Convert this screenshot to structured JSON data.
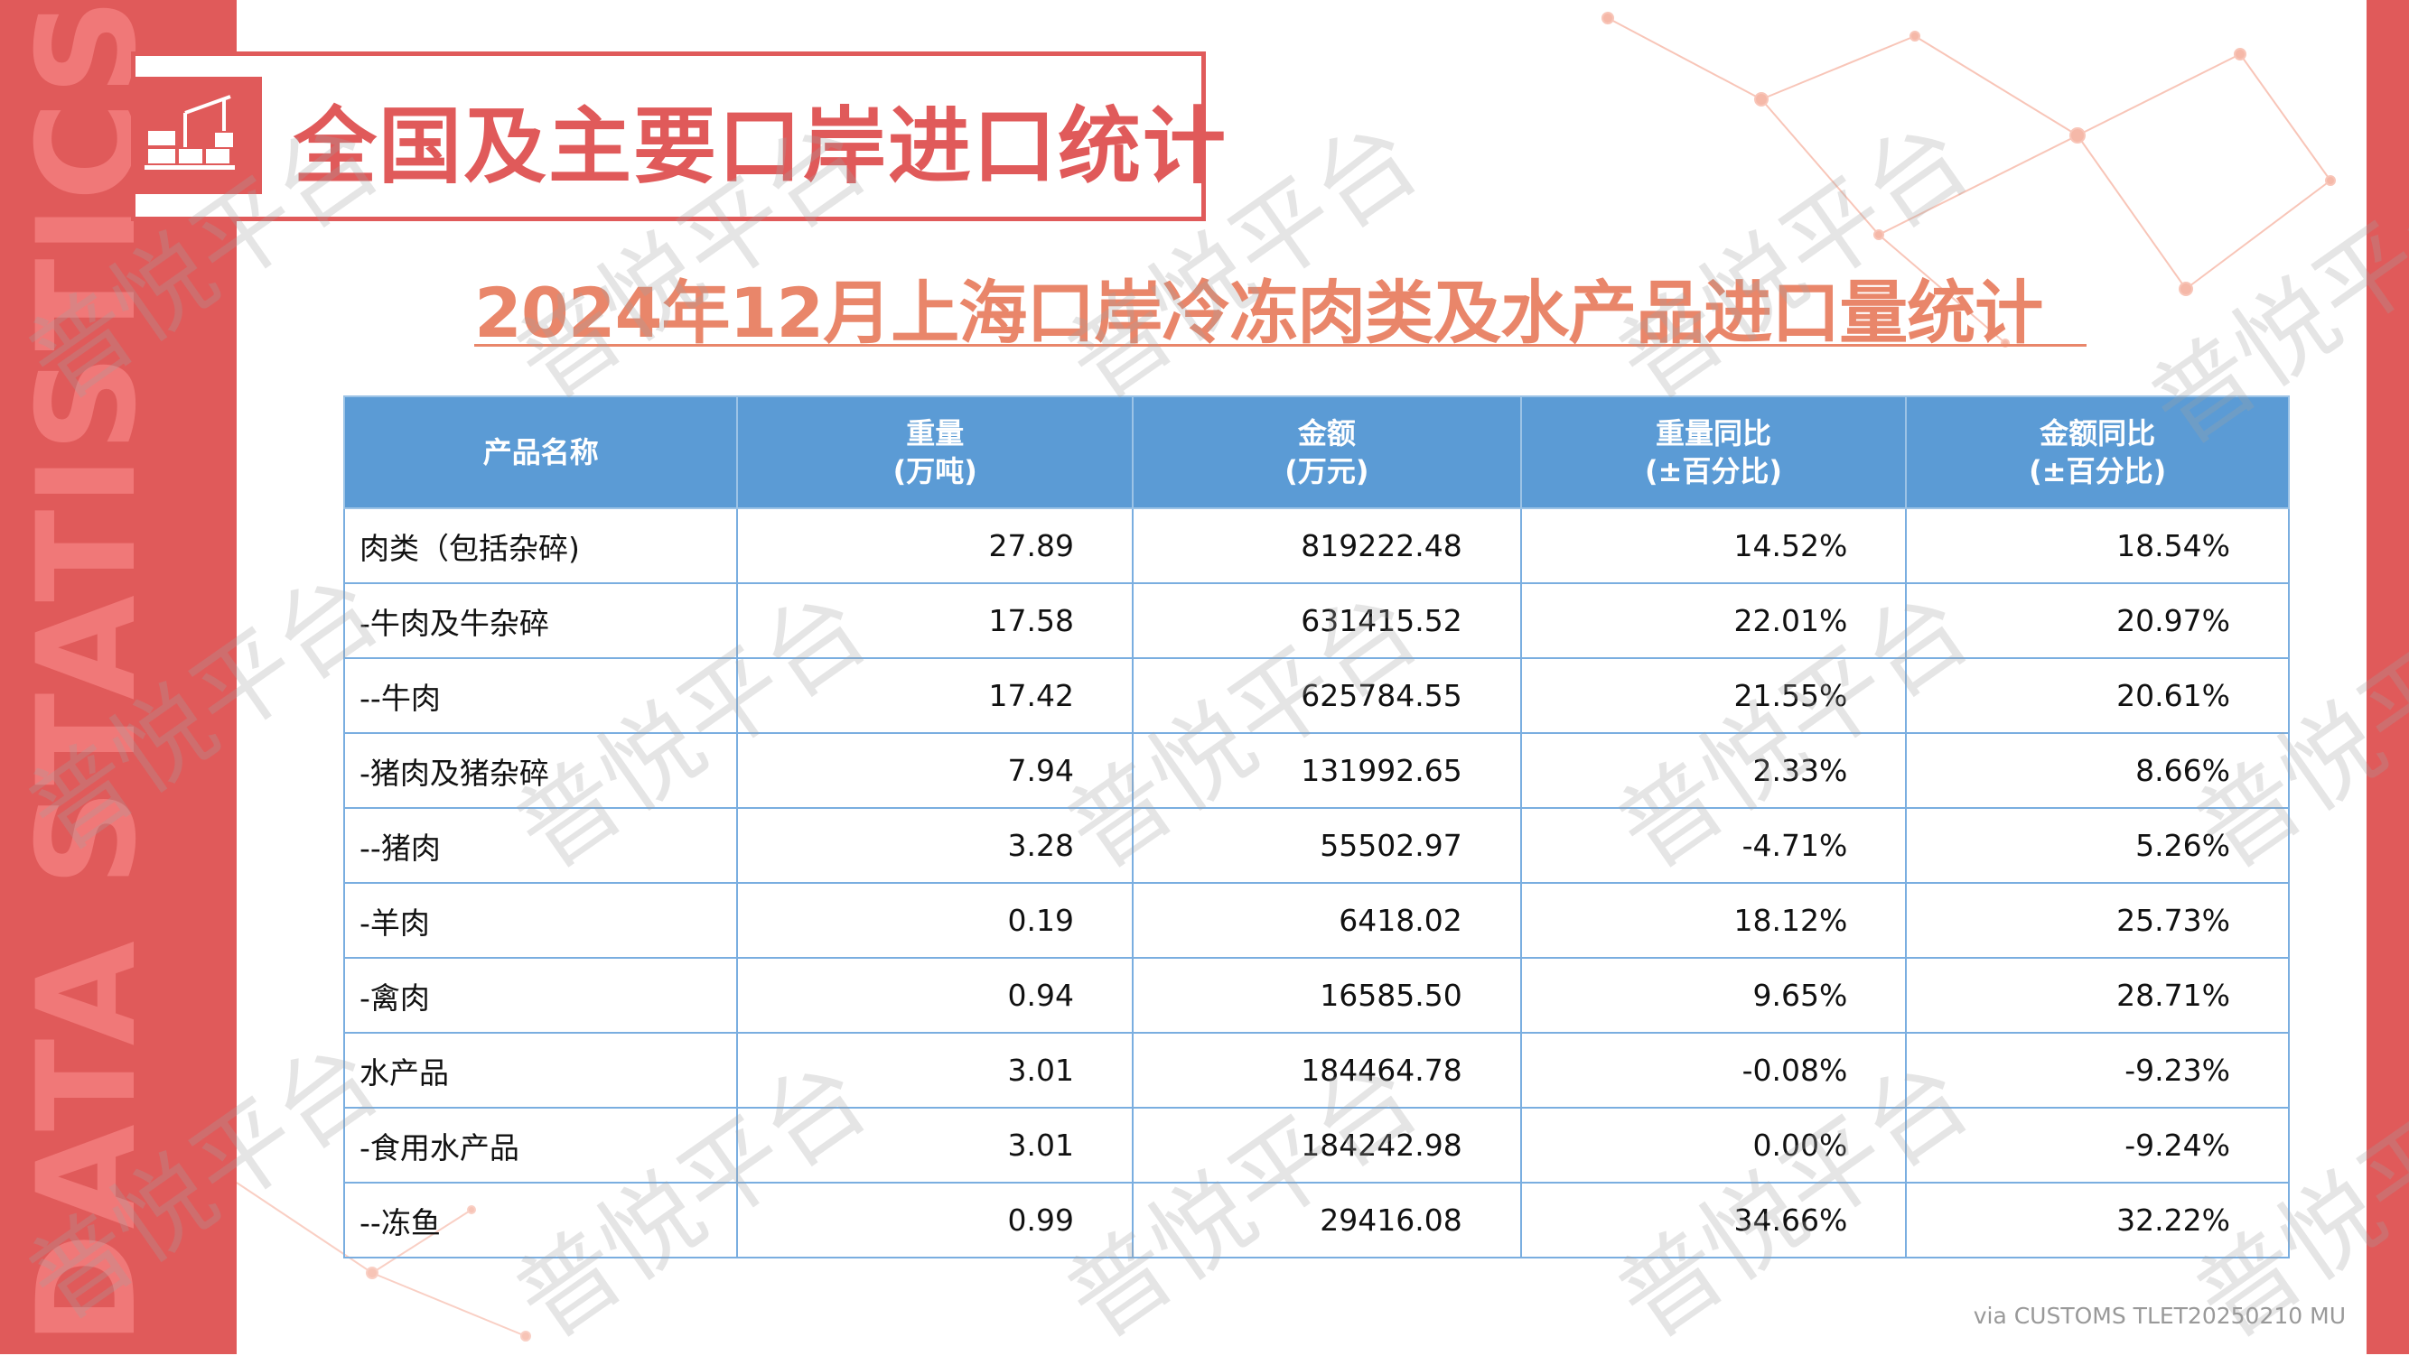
{
  "side_text": "DATA STATISTICS REPORT",
  "title": "全国及主要口岸进口统计",
  "subtitle": "2024年12月上海口岸冷冻肉类及水产品进口量统计",
  "watermark": "普悦平台",
  "colors": {
    "accent_red": "#e05a5a",
    "subtitle_orange": "#e9866a",
    "header_blue": "#5b9bd5"
  },
  "table": {
    "headers": [
      [
        "产品名称",
        ""
      ],
      [
        "重量",
        "(万吨)"
      ],
      [
        "金额",
        "(万元)"
      ],
      [
        "重量同比",
        "(±百分比)"
      ],
      [
        "金额同比",
        "(±百分比)"
      ]
    ],
    "rows": [
      [
        "肉类（包括杂碎)",
        "27.89",
        "819222.48",
        "14.52%",
        "18.54%"
      ],
      [
        "-牛肉及牛杂碎",
        "17.58",
        "631415.52",
        "22.01%",
        "20.97%"
      ],
      [
        "--牛肉",
        "17.42",
        "625784.55",
        "21.55%",
        "20.61%"
      ],
      [
        "-猪肉及猪杂碎",
        "7.94",
        "131992.65",
        "2.33%",
        "8.66%"
      ],
      [
        "--猪肉",
        "3.28",
        "55502.97",
        "-4.71%",
        "5.26%"
      ],
      [
        "-羊肉",
        "0.19",
        "6418.02",
        "18.12%",
        "25.73%"
      ],
      [
        "-禽肉",
        "0.94",
        "16585.50",
        "9.65%",
        "28.71%"
      ],
      [
        "水产品",
        "3.01",
        "184464.78",
        "-0.08%",
        "-9.23%"
      ],
      [
        "-食用水产品",
        "3.01",
        "184242.98",
        "0.00%",
        "-9.24%"
      ],
      [
        "--冻鱼",
        "0.99",
        "29416.08",
        "34.66%",
        "32.22%"
      ]
    ]
  },
  "footer": "via CUSTOMS TLET20250210 MU"
}
